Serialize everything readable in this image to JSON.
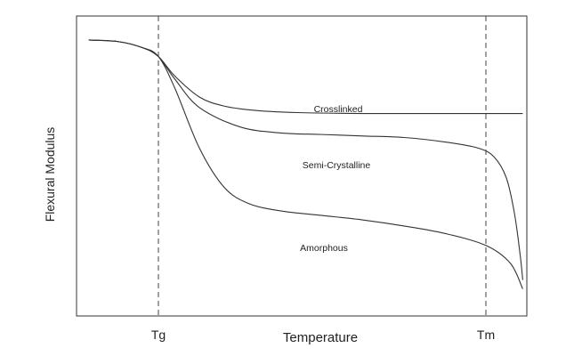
{
  "chart_data": {
    "type": "line",
    "title": "",
    "xlabel": "Temperature",
    "ylabel": "Flexural Modulus",
    "x_ticks": [
      "Tg",
      "Tm"
    ],
    "x_tick_values": [
      1,
      5
    ],
    "xlim": [
      0,
      5.5
    ],
    "ylim": [
      0,
      10
    ],
    "grid": false,
    "legend": "none",
    "reference_lines": [
      {
        "label": "Tg",
        "x": 1,
        "style": "dashed"
      },
      {
        "label": "Tm",
        "x": 5,
        "style": "dashed"
      }
    ],
    "series": [
      {
        "name": "Crosslinked",
        "x": [
          0.15,
          0.5,
          0.8,
          1.0,
          1.2,
          1.5,
          1.8,
          2.2,
          2.7,
          3.5,
          4.5,
          5.0,
          5.45
        ],
        "y": [
          9.2,
          9.15,
          8.95,
          8.65,
          8.0,
          7.3,
          7.0,
          6.85,
          6.78,
          6.75,
          6.75,
          6.75,
          6.75
        ]
      },
      {
        "name": "Semi-Crystalline",
        "x": [
          0.15,
          0.5,
          0.8,
          1.0,
          1.2,
          1.5,
          2.0,
          2.5,
          3.0,
          3.5,
          4.0,
          4.5,
          4.9,
          5.1,
          5.25,
          5.35,
          5.42,
          5.45
        ],
        "y": [
          9.2,
          9.15,
          8.95,
          8.65,
          7.9,
          6.95,
          6.3,
          6.1,
          6.05,
          6.0,
          5.95,
          5.8,
          5.6,
          5.3,
          4.6,
          3.4,
          2.0,
          1.2
        ]
      },
      {
        "name": "Amorphous",
        "x": [
          0.15,
          0.5,
          0.8,
          1.0,
          1.2,
          1.5,
          1.8,
          2.1,
          2.5,
          3.0,
          3.5,
          4.0,
          4.5,
          5.0,
          5.3,
          5.45
        ],
        "y": [
          9.2,
          9.15,
          8.95,
          8.65,
          7.6,
          5.6,
          4.3,
          3.75,
          3.5,
          3.35,
          3.2,
          3.0,
          2.75,
          2.35,
          1.75,
          0.9
        ]
      }
    ]
  }
}
